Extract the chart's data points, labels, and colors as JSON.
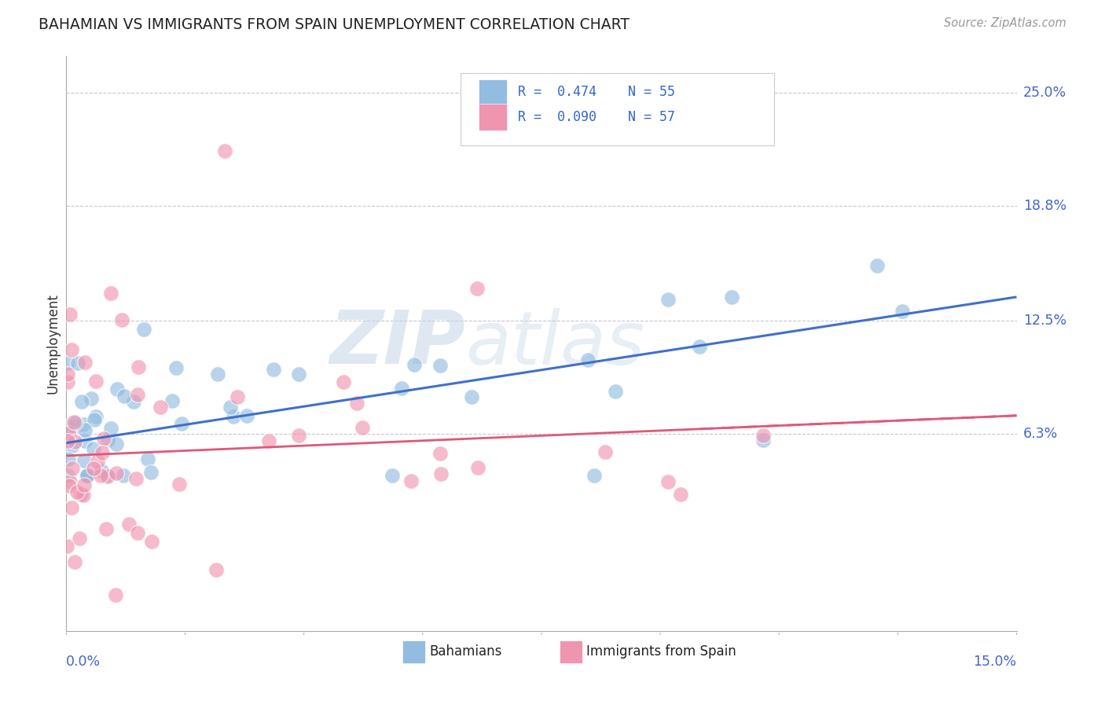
{
  "title": "BAHAMIAN VS IMMIGRANTS FROM SPAIN UNEMPLOYMENT CORRELATION CHART",
  "source": "Source: ZipAtlas.com",
  "ylabel": "Unemployment",
  "y_tick_labels": [
    "6.3%",
    "12.5%",
    "18.8%",
    "25.0%"
  ],
  "y_tick_values": [
    0.063,
    0.125,
    0.188,
    0.25
  ],
  "x_range": [
    0.0,
    0.15
  ],
  "y_range": [
    -0.045,
    0.27
  ],
  "legend_label_bahamians": "Bahamians",
  "legend_label_spain": "Immigrants from Spain",
  "bahamian_color": "#92bce0",
  "spain_color": "#f095b0",
  "bahamian_trend_color": "#4070c8",
  "spain_trend_color": "#e05878",
  "watermark_zip": "ZIP",
  "watermark_atlas": "atlas",
  "bahamian_trend_x0": 0.0,
  "bahamian_trend_x1": 0.15,
  "bahamian_trend_y0": 0.058,
  "bahamian_trend_y1": 0.138,
  "spain_trend_x0": 0.0,
  "spain_trend_x1": 0.15,
  "spain_trend_y0": 0.051,
  "spain_trend_y1": 0.073
}
